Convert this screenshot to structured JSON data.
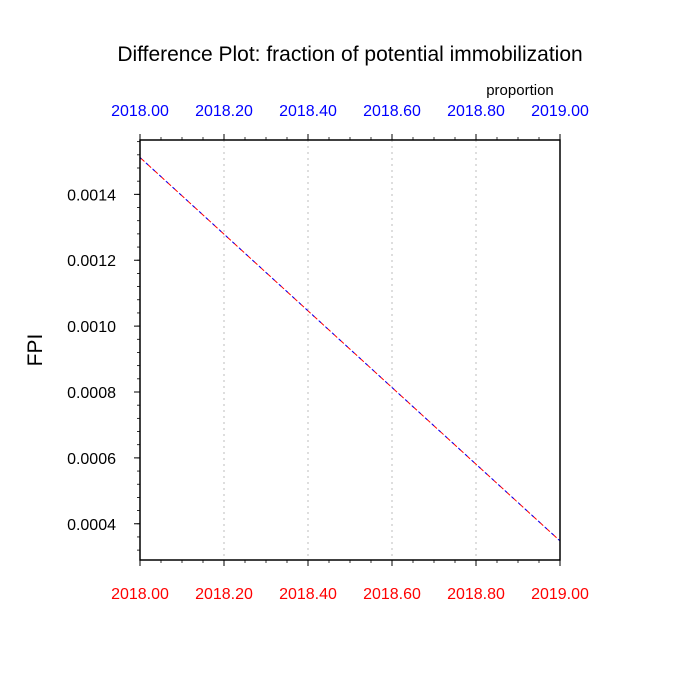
{
  "chart_data": {
    "type": "line",
    "title": "Difference Plot: fraction of potential immobilization",
    "subtitle": "proportion",
    "ylabel": "FPI",
    "xlabel": "",
    "xlim": [
      2018.0,
      2019.0
    ],
    "ylim": [
      0.00029,
      0.001565
    ],
    "x_ticks": [
      "2018.00",
      "2018.20",
      "2018.40",
      "2018.60",
      "2018.80",
      "2019.00"
    ],
    "x_tick_values": [
      2018.0,
      2018.2,
      2018.4,
      2018.6,
      2018.8,
      2019.0
    ],
    "y_ticks": [
      "0.0004",
      "0.0006",
      "0.0008",
      "0.0010",
      "0.0012",
      "0.0014"
    ],
    "y_tick_values": [
      0.0004,
      0.0006,
      0.0008,
      0.001,
      0.0012,
      0.0014
    ],
    "grid": "vertical dotted",
    "series": [
      {
        "x": [
          2018.0,
          2019.0
        ],
        "values": [
          0.001512,
          0.000348
        ],
        "colors": [
          "#ff0000",
          "#0000ff"
        ],
        "style": "dashed"
      }
    ],
    "colors": {
      "bottom_axis_labels": "#ff0000",
      "top_axis_labels": "#0000ff",
      "grid": "#c8c8c8"
    }
  }
}
